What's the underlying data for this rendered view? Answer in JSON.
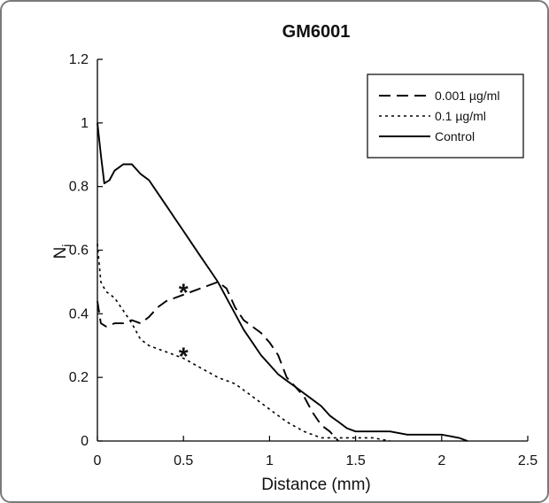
{
  "chart_data": {
    "type": "line",
    "title": "GM6001",
    "xlabel": "Distance (mm)",
    "ylabel": "N",
    "ylabel_subscript": "i",
    "xlim": [
      0,
      2.5
    ],
    "ylim": [
      0,
      1.2
    ],
    "x_ticks": [
      "0",
      "0.5",
      "1",
      "1.5",
      "2",
      "2.5"
    ],
    "y_ticks": [
      "0",
      "0.2",
      "0.4",
      "0.6",
      "0.8",
      "1",
      "1.2"
    ],
    "grid": false,
    "legend_position": "top-right",
    "series": [
      {
        "name": "0.001 µg/ml",
        "style": "dashed",
        "points": [
          [
            0,
            0.44
          ],
          [
            0.02,
            0.37
          ],
          [
            0.05,
            0.36
          ],
          [
            0.1,
            0.37
          ],
          [
            0.15,
            0.37
          ],
          [
            0.2,
            0.38
          ],
          [
            0.25,
            0.37
          ],
          [
            0.3,
            0.39
          ],
          [
            0.35,
            0.42
          ],
          [
            0.4,
            0.44
          ],
          [
            0.45,
            0.45
          ],
          [
            0.5,
            0.46
          ],
          [
            0.55,
            0.47
          ],
          [
            0.6,
            0.48
          ],
          [
            0.65,
            0.49
          ],
          [
            0.7,
            0.5
          ],
          [
            0.75,
            0.48
          ],
          [
            0.8,
            0.42
          ],
          [
            0.85,
            0.38
          ],
          [
            0.9,
            0.36
          ],
          [
            0.95,
            0.34
          ],
          [
            1.0,
            0.31
          ],
          [
            1.05,
            0.27
          ],
          [
            1.1,
            0.2
          ],
          [
            1.15,
            0.17
          ],
          [
            1.2,
            0.14
          ],
          [
            1.25,
            0.09
          ],
          [
            1.3,
            0.05
          ],
          [
            1.35,
            0.03
          ],
          [
            1.4,
            0.0
          ]
        ]
      },
      {
        "name": "0.1 µg/ml",
        "style": "dotted",
        "points": [
          [
            0,
            0.62
          ],
          [
            0.02,
            0.5
          ],
          [
            0.05,
            0.47
          ],
          [
            0.1,
            0.45
          ],
          [
            0.15,
            0.41
          ],
          [
            0.2,
            0.37
          ],
          [
            0.25,
            0.32
          ],
          [
            0.3,
            0.3
          ],
          [
            0.4,
            0.28
          ],
          [
            0.5,
            0.26
          ],
          [
            0.6,
            0.23
          ],
          [
            0.7,
            0.2
          ],
          [
            0.8,
            0.18
          ],
          [
            0.9,
            0.14
          ],
          [
            1.0,
            0.1
          ],
          [
            1.1,
            0.06
          ],
          [
            1.2,
            0.03
          ],
          [
            1.3,
            0.01
          ],
          [
            1.4,
            0.01
          ],
          [
            1.5,
            0.01
          ],
          [
            1.6,
            0.01
          ],
          [
            1.7,
            0.0
          ]
        ]
      },
      {
        "name": "Control",
        "style": "solid",
        "points": [
          [
            0,
            1.0
          ],
          [
            0.02,
            0.9
          ],
          [
            0.04,
            0.81
          ],
          [
            0.07,
            0.82
          ],
          [
            0.1,
            0.85
          ],
          [
            0.15,
            0.87
          ],
          [
            0.2,
            0.87
          ],
          [
            0.25,
            0.84
          ],
          [
            0.3,
            0.82
          ],
          [
            0.35,
            0.78
          ],
          [
            0.4,
            0.74
          ],
          [
            0.45,
            0.7
          ],
          [
            0.5,
            0.66
          ],
          [
            0.55,
            0.62
          ],
          [
            0.6,
            0.58
          ],
          [
            0.65,
            0.54
          ],
          [
            0.7,
            0.5
          ],
          [
            0.75,
            0.45
          ],
          [
            0.8,
            0.4
          ],
          [
            0.85,
            0.35
          ],
          [
            0.9,
            0.31
          ],
          [
            0.95,
            0.27
          ],
          [
            1.0,
            0.24
          ],
          [
            1.05,
            0.21
          ],
          [
            1.1,
            0.19
          ],
          [
            1.15,
            0.17
          ],
          [
            1.2,
            0.15
          ],
          [
            1.25,
            0.13
          ],
          [
            1.3,
            0.11
          ],
          [
            1.35,
            0.08
          ],
          [
            1.4,
            0.06
          ],
          [
            1.45,
            0.04
          ],
          [
            1.5,
            0.03
          ],
          [
            1.6,
            0.03
          ],
          [
            1.7,
            0.03
          ],
          [
            1.8,
            0.02
          ],
          [
            1.9,
            0.02
          ],
          [
            2.0,
            0.02
          ],
          [
            2.1,
            0.01
          ],
          [
            2.15,
            0.0
          ]
        ]
      }
    ],
    "annotations": [
      {
        "text": "*",
        "x": 0.5,
        "y": 0.48
      },
      {
        "text": "*",
        "x": 0.5,
        "y": 0.28
      }
    ]
  }
}
